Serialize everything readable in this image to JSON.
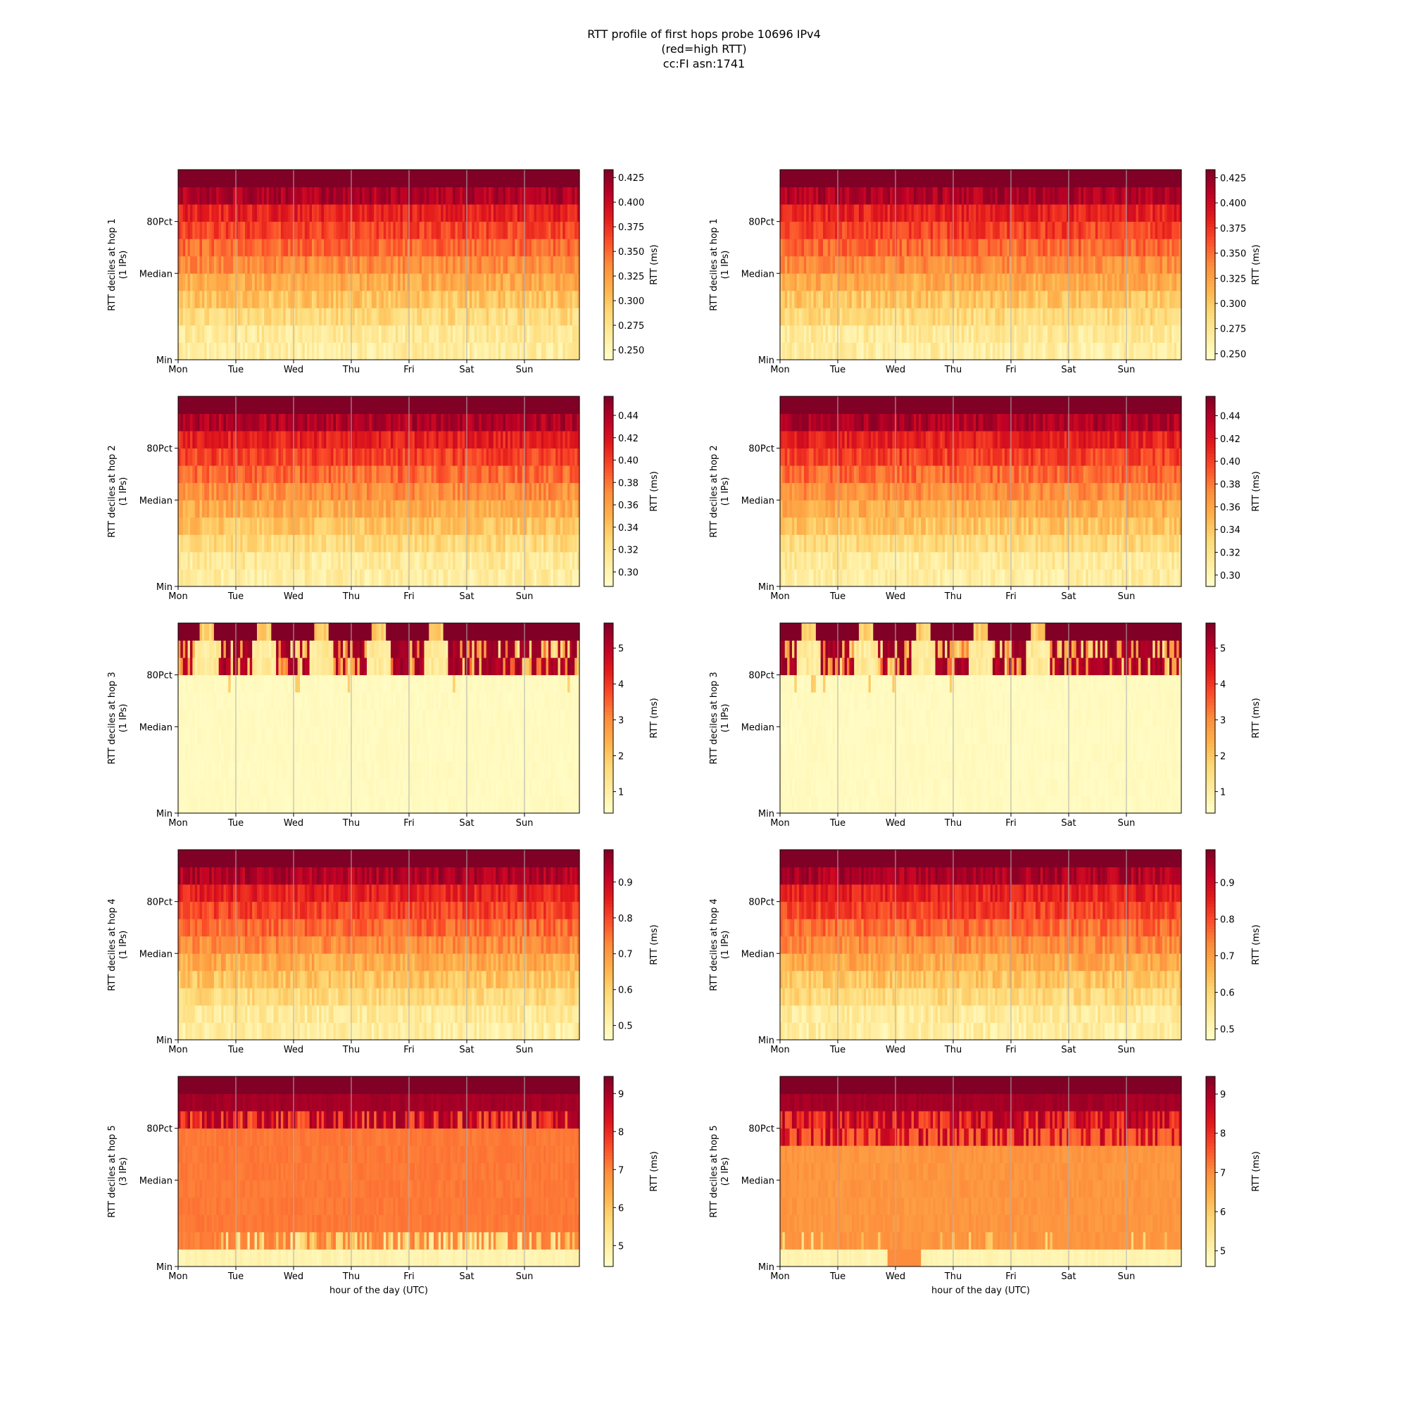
{
  "title_lines": [
    "RTT profile of first hops probe 10696 IPv4",
    "(red=high RTT)",
    "cc:FI asn:1741"
  ],
  "colors": {
    "cmap": [
      "#ffffcc",
      "#ffeda0",
      "#fed976",
      "#feb24c",
      "#fd8d3c",
      "#fc4e2a",
      "#e31a1c",
      "#bd0026",
      "#800026"
    ],
    "grid": "#b0b0b0",
    "axis": "#000000"
  },
  "chart_data": [
    {
      "type": "heatmap",
      "hop": 1,
      "column": "left",
      "ylabel": "RTT deciles at hop 1",
      "ylabel2": "(1 IPs)",
      "xlabel": "",
      "xticks": [
        "Mon",
        "Tue",
        "Wed",
        "Thu",
        "Fri",
        "Sat",
        "Sun"
      ],
      "yticks": [
        "Min",
        "Median",
        "80Pct"
      ],
      "colorbar_label": "RTT (ms)",
      "colorbar_ticks": [
        "0.250",
        "0.275",
        "0.300",
        "0.325",
        "0.350",
        "0.375",
        "0.400",
        "0.425"
      ],
      "vmin": 0.24,
      "vmax": 0.433,
      "profile": "normal"
    },
    {
      "type": "heatmap",
      "hop": 1,
      "column": "right",
      "ylabel": "RTT deciles at hop 1",
      "ylabel2": "(1 IPs)",
      "xlabel": "",
      "xticks": [
        "Mon",
        "Tue",
        "Wed",
        "Thu",
        "Fri",
        "Sat",
        "Sun"
      ],
      "yticks": [
        "Min",
        "Median",
        "80Pct"
      ],
      "colorbar_label": "RTT (ms)",
      "colorbar_ticks": [
        "0.250",
        "0.275",
        "0.300",
        "0.325",
        "0.350",
        "0.375",
        "0.400",
        "0.425"
      ],
      "vmin": 0.244,
      "vmax": 0.433,
      "profile": "normal"
    },
    {
      "type": "heatmap",
      "hop": 2,
      "column": "left",
      "ylabel": "RTT deciles at hop 2",
      "ylabel2": "(1 IPs)",
      "xlabel": "",
      "xticks": [
        "Mon",
        "Tue",
        "Wed",
        "Thu",
        "Fri",
        "Sat",
        "Sun"
      ],
      "yticks": [
        "Min",
        "Median",
        "80Pct"
      ],
      "colorbar_label": "RTT (ms)",
      "colorbar_ticks": [
        "0.30",
        "0.32",
        "0.34",
        "0.36",
        "0.38",
        "0.40",
        "0.42",
        "0.44"
      ],
      "vmin": 0.287,
      "vmax": 0.457,
      "profile": "normal"
    },
    {
      "type": "heatmap",
      "hop": 2,
      "column": "right",
      "ylabel": "RTT deciles at hop 2",
      "ylabel2": "(1 IPs)",
      "xlabel": "",
      "xticks": [
        "Mon",
        "Tue",
        "Wed",
        "Thu",
        "Fri",
        "Sat",
        "Sun"
      ],
      "yticks": [
        "Min",
        "Median",
        "80Pct"
      ],
      "colorbar_label": "RTT (ms)",
      "colorbar_ticks": [
        "0.30",
        "0.32",
        "0.34",
        "0.36",
        "0.38",
        "0.40",
        "0.42",
        "0.44"
      ],
      "vmin": 0.29,
      "vmax": 0.457,
      "profile": "normal"
    },
    {
      "type": "heatmap",
      "hop": 3,
      "column": "left",
      "ylabel": "RTT deciles at hop 3",
      "ylabel2": "(1 IPs)",
      "xlabel": "",
      "xticks": [
        "Mon",
        "Tue",
        "Wed",
        "Thu",
        "Fri",
        "Sat",
        "Sun"
      ],
      "yticks": [
        "Min",
        "Median",
        "80Pct"
      ],
      "colorbar_label": "RTT (ms)",
      "colorbar_ticks": [
        "1",
        "2",
        "3",
        "4",
        "5"
      ],
      "vmin": 0.4,
      "vmax": 5.7,
      "profile": "hop3"
    },
    {
      "type": "heatmap",
      "hop": 3,
      "column": "right",
      "ylabel": "RTT deciles at hop 3",
      "ylabel2": "(1 IPs)",
      "xlabel": "",
      "xticks": [
        "Mon",
        "Tue",
        "Wed",
        "Thu",
        "Fri",
        "Sat",
        "Sun"
      ],
      "yticks": [
        "Min",
        "Median",
        "80Pct"
      ],
      "colorbar_label": "RTT (ms)",
      "colorbar_ticks": [
        "1",
        "2",
        "3",
        "4",
        "5"
      ],
      "vmin": 0.4,
      "vmax": 5.7,
      "profile": "hop3"
    },
    {
      "type": "heatmap",
      "hop": 4,
      "column": "left",
      "ylabel": "RTT deciles at hop 4",
      "ylabel2": "(1 IPs)",
      "xlabel": "",
      "xticks": [
        "Mon",
        "Tue",
        "Wed",
        "Thu",
        "Fri",
        "Sat",
        "Sun"
      ],
      "yticks": [
        "Min",
        "Median",
        "80Pct"
      ],
      "colorbar_label": "RTT (ms)",
      "colorbar_ticks": [
        "0.5",
        "0.6",
        "0.7",
        "0.8",
        "0.9"
      ],
      "vmin": 0.46,
      "vmax": 0.99,
      "profile": "normal"
    },
    {
      "type": "heatmap",
      "hop": 4,
      "column": "right",
      "ylabel": "RTT deciles at hop 4",
      "ylabel2": "(1 IPs)",
      "xlabel": "",
      "xticks": [
        "Mon",
        "Tue",
        "Wed",
        "Thu",
        "Fri",
        "Sat",
        "Sun"
      ],
      "yticks": [
        "Min",
        "Median",
        "80Pct"
      ],
      "colorbar_label": "RTT (ms)",
      "colorbar_ticks": [
        "0.5",
        "0.6",
        "0.7",
        "0.8",
        "0.9"
      ],
      "vmin": 0.47,
      "vmax": 0.99,
      "profile": "normal"
    },
    {
      "type": "heatmap",
      "hop": 5,
      "column": "left",
      "ylabel": "RTT deciles at hop 5",
      "ylabel2": "(3 IPs)",
      "xlabel": "hour of the day (UTC)",
      "xticks": [
        "Mon",
        "Tue",
        "Wed",
        "Thu",
        "Fri",
        "Sat",
        "Sun"
      ],
      "yticks": [
        "Min",
        "Median",
        "80Pct"
      ],
      "colorbar_label": "RTT (ms)",
      "colorbar_ticks": [
        "5",
        "6",
        "7",
        "8",
        "9"
      ],
      "vmin": 4.45,
      "vmax": 9.45,
      "profile": "hop5a"
    },
    {
      "type": "heatmap",
      "hop": 5,
      "column": "right",
      "ylabel": "RTT deciles at hop 5",
      "ylabel2": "(2 IPs)",
      "xlabel": "hour of the day (UTC)",
      "xticks": [
        "Mon",
        "Tue",
        "Wed",
        "Thu",
        "Fri",
        "Sat",
        "Sun"
      ],
      "yticks": [
        "Min",
        "Median",
        "80Pct"
      ],
      "colorbar_label": "RTT (ms)",
      "colorbar_ticks": [
        "5",
        "6",
        "7",
        "8",
        "9"
      ],
      "vmin": 4.6,
      "vmax": 9.45,
      "profile": "hop5b"
    }
  ]
}
